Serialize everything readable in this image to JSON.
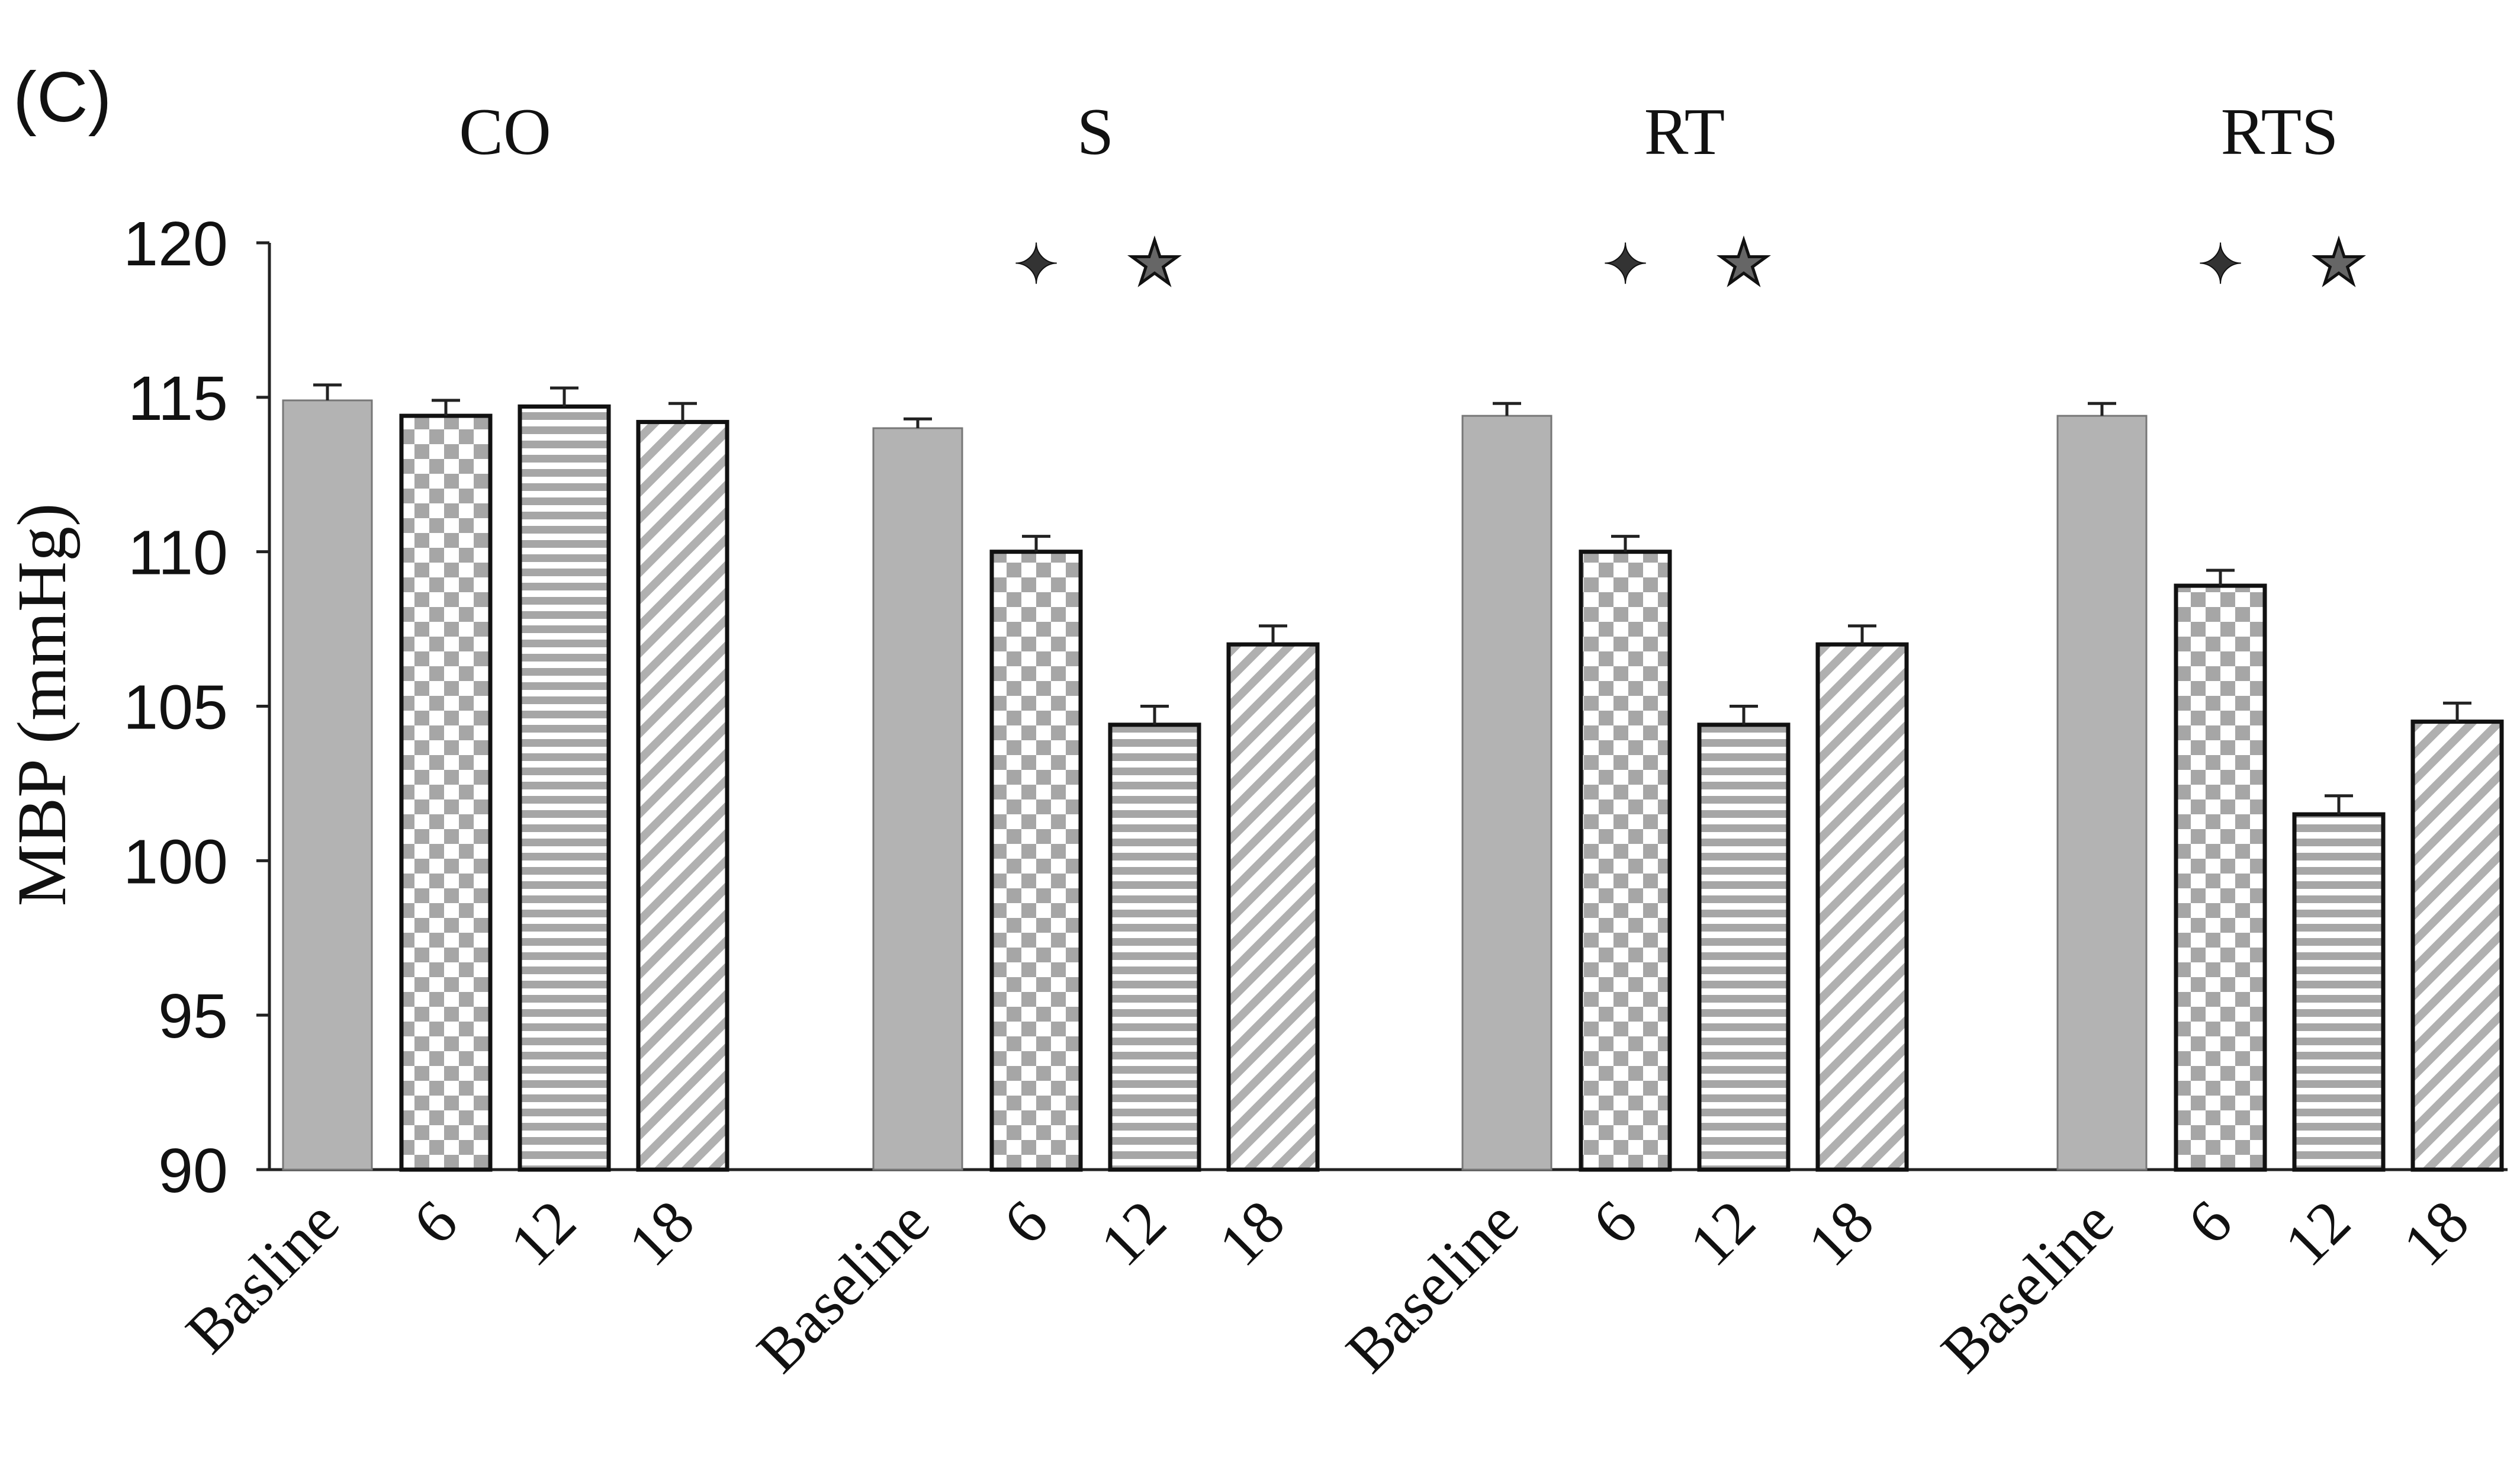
{
  "panel_label": "(C)",
  "chart_data": {
    "type": "bar",
    "title": "",
    "xlabel": "",
    "ylabel": "MBP (mmHg)",
    "ylim": [
      90,
      120
    ],
    "yticks": [
      90,
      95,
      100,
      105,
      110,
      115,
      120
    ],
    "grid": false,
    "legend": "none",
    "groups": [
      {
        "name": "CO",
        "categories": [
          "Basline",
          "6",
          "12",
          "18"
        ],
        "values": [
          114.9,
          114.4,
          114.7,
          114.2
        ],
        "errors": [
          0.5,
          0.5,
          0.6,
          0.6
        ],
        "markers": []
      },
      {
        "name": "S",
        "categories": [
          "Baseline",
          "6",
          "12",
          "18"
        ],
        "values": [
          114.0,
          110.0,
          104.4,
          107.0
        ],
        "errors": [
          0.3,
          0.5,
          0.6,
          0.6
        ],
        "markers": [
          {
            "symbol": "✦",
            "above": "6"
          },
          {
            "symbol": "★",
            "above": "12"
          }
        ]
      },
      {
        "name": "RT",
        "categories": [
          "Baseline",
          "6",
          "12",
          "18"
        ],
        "values": [
          114.4,
          110.0,
          104.4,
          107.0
        ],
        "errors": [
          0.4,
          0.5,
          0.6,
          0.6
        ],
        "markers": [
          {
            "symbol": "✦",
            "above": "6"
          },
          {
            "symbol": "★",
            "above": "12"
          }
        ]
      },
      {
        "name": "RTS",
        "categories": [
          "Baseline",
          "6",
          "12",
          "18"
        ],
        "values": [
          114.4,
          108.9,
          101.5,
          104.5
        ],
        "errors": [
          0.4,
          0.5,
          0.6,
          0.6
        ],
        "markers": [
          {
            "symbol": "✦",
            "above": "6"
          },
          {
            "symbol": "★",
            "above": "12"
          }
        ]
      }
    ],
    "colors": {
      "solid": "#b3b3b3",
      "pattern": "#9e9e9e",
      "outline": "#111111"
    }
  }
}
